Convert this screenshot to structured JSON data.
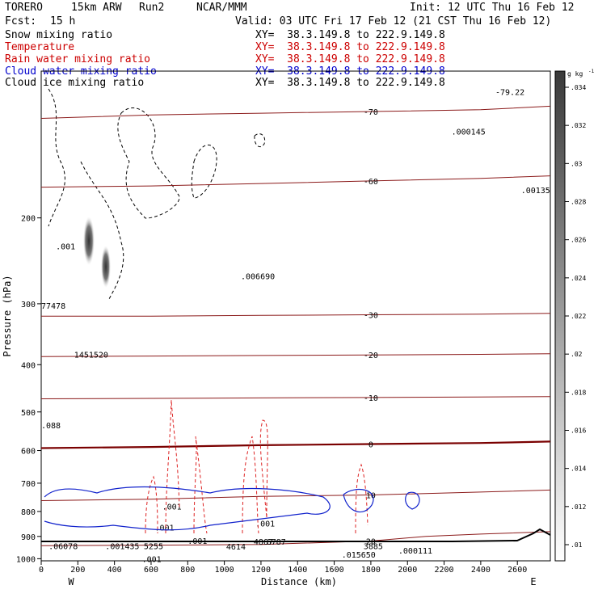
{
  "header": {
    "model": "TORERO",
    "resolution": "15km ARW",
    "run": "Run2",
    "center": "NCAR/MMM",
    "init": "Init: 12 UTC Thu 16 Feb 12",
    "fcst_label": "Fcst:",
    "fcst_value": "15 h",
    "valid": "Valid: 03 UTC Fri 17 Feb 12 (21 CST Thu 16 Feb 12)"
  },
  "legend": [
    {
      "name": "Snow mixing ratio",
      "color": "#000000",
      "xy": "XY=  38.3.149.8 to 222.9.149.8"
    },
    {
      "name": "Temperature",
      "color": "#cc0000",
      "xy": "XY=  38.3.149.8 to 222.9.149.8"
    },
    {
      "name": "Rain water mixing ratio",
      "color": "#cc0000",
      "xy": "XY=  38.3.149.8 to 222.9.149.8"
    },
    {
      "name": "Cloud water mixing ratio",
      "color": "#0000cc",
      "xy": "XY=  38.3.149.8 to 222.9.149.8"
    },
    {
      "name": "Cloud ice mixing ratio",
      "color": "#000000",
      "xy": "XY=  38.3.149.8 to 222.9.149.8"
    }
  ],
  "chart_data": {
    "type": "line",
    "xlabel": "Distance (km)",
    "ylabel": "Pressure (hPa)",
    "xlim": [
      0,
      2780
    ],
    "ylim": [
      1010,
      100
    ],
    "y_scale": "log",
    "x_ticks": [
      0,
      200,
      400,
      600,
      800,
      1000,
      1200,
      1400,
      1600,
      1800,
      2000,
      2200,
      2400,
      2600
    ],
    "y_ticks": [
      200,
      300,
      400,
      500,
      600,
      700,
      800,
      900,
      1000
    ],
    "x_end_labels": {
      "left": "W",
      "right": "E"
    },
    "colorbar": {
      "unit": "g kg",
      "unit_exp": "-1",
      "ticks": [
        ".01",
        ".012",
        ".014",
        ".016",
        ".018",
        ".02",
        ".022",
        ".024",
        ".026",
        ".028",
        ".03",
        ".032",
        ".034"
      ]
    },
    "temperature_contours": [
      {
        "level": -70,
        "label": "-70",
        "lines": [
          [
            [
              0,
              125
            ],
            [
              600,
              123
            ],
            [
              1200,
              122
            ],
            [
              1800,
              121
            ],
            [
              2400,
              120
            ],
            [
              2780,
              118
            ]
          ]
        ]
      },
      {
        "level": -60,
        "label": "-60",
        "lines": [
          [
            [
              0,
              173
            ],
            [
              600,
              172
            ],
            [
              1200,
              170
            ],
            [
              1800,
              168
            ],
            [
              2400,
              166
            ],
            [
              2780,
              164
            ]
          ]
        ]
      },
      {
        "level": -30,
        "label": "-30",
        "lines": [
          [
            [
              0,
              318
            ],
            [
              600,
              318
            ],
            [
              1200,
              317
            ],
            [
              1800,
              316
            ],
            [
              2400,
              315
            ],
            [
              2780,
              314
            ]
          ]
        ]
      },
      {
        "level": -20,
        "label": "-20",
        "lines": [
          [
            [
              0,
              385
            ],
            [
              600,
              384
            ],
            [
              1200,
              383
            ],
            [
              1800,
              382
            ],
            [
              2400,
              381
            ],
            [
              2780,
              380
            ]
          ]
        ]
      },
      {
        "level": -10,
        "label": "-10",
        "lines": [
          [
            [
              0,
              470
            ],
            [
              600,
              469
            ],
            [
              1200,
              468
            ],
            [
              1800,
              467
            ],
            [
              2400,
              466
            ],
            [
              2780,
              465
            ]
          ]
        ]
      },
      {
        "level": 0,
        "label": "0",
        "lines": [
          [
            [
              0,
              593
            ],
            [
              600,
              590
            ],
            [
              1200,
              585
            ],
            [
              1800,
              582
            ],
            [
              2400,
              579
            ],
            [
              2780,
              575
            ]
          ]
        ]
      },
      {
        "level": 10,
        "label": "10",
        "lines": [
          [
            [
              0,
              760
            ],
            [
              600,
              755
            ],
            [
              1200,
              745
            ],
            [
              1800,
              740
            ],
            [
              2400,
              730
            ],
            [
              2780,
              723
            ]
          ]
        ]
      },
      {
        "level": 20,
        "label": "20",
        "lines": [
          [
            [
              0,
              940
            ],
            [
              600,
              938
            ],
            [
              1200,
              935
            ],
            [
              1800,
              920
            ],
            [
              2100,
              900
            ],
            [
              2400,
              890
            ],
            [
              2780,
              880
            ]
          ]
        ]
      }
    ],
    "labels": [
      {
        "text": "-79.22",
        "x": 2480,
        "p": 112
      },
      {
        "text": ".000145",
        "x": 2240,
        "p": 135
      },
      {
        "text": ".00135",
        "x": 2620,
        "p": 178
      },
      {
        "text": ".006690",
        "x": 1090,
        "p": 267
      },
      {
        "text": ".001",
        "x": 80,
        "p": 232
      },
      {
        "text": "77478",
        "x": 0,
        "p": 307
      },
      {
        "text": "1451520",
        "x": 180,
        "p": 387
      },
      {
        "text": ".088",
        "x": 0,
        "p": 540
      },
      {
        "text": ".001",
        "x": 660,
        "p": 792
      },
      {
        "text": ".001",
        "x": 1170,
        "p": 858
      },
      {
        "text": ".001",
        "x": 620,
        "p": 875
      },
      {
        "text": ".001",
        "x": 800,
        "p": 932
      },
      {
        "text": ".001",
        "x": 550,
        "p": 1015
      },
      {
        "text": ".06078",
        "x": 40,
        "p": 955
      },
      {
        "text": ".001435",
        "x": 350,
        "p": 955
      },
      {
        "text": "5255",
        "x": 560,
        "p": 955
      },
      {
        "text": "4614",
        "x": 1010,
        "p": 957
      },
      {
        "text": "4867",
        "x": 1160,
        "p": 935
      },
      {
        "text": "6787",
        "x": 1230,
        "p": 935
      },
      {
        "text": "3885",
        "x": 1760,
        "p": 955
      },
      {
        "text": ".000111",
        "x": 1950,
        "p": 975
      },
      {
        "text": ".015650",
        "x": 1640,
        "p": 995
      }
    ]
  }
}
